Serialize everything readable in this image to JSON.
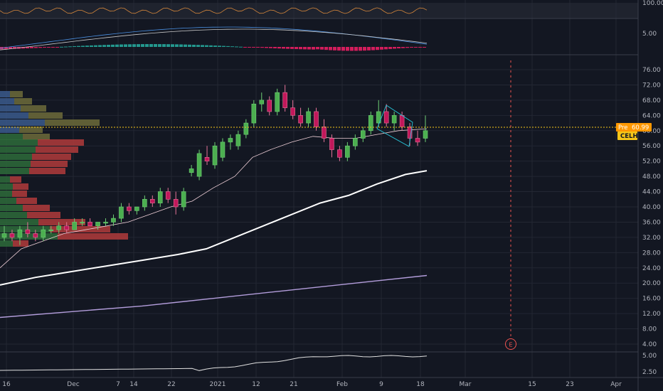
{
  "symbol": "CELH",
  "pre_label": "Pre",
  "price_label": "60.99",
  "earnings_marker": "E",
  "colors": {
    "background": "#131722",
    "grid": "#2a2e39",
    "up": "#26a69a",
    "down": "#ef5350",
    "candle_up": "#4caf50",
    "candle_down": "#c2185b",
    "price_line": "#f5c518",
    "ma_fast": "#f0d0d8",
    "ma_mid": "#ffffff",
    "ma_slow": "#b39ddb",
    "tag": "#ff9800"
  },
  "x_ticks": [
    "16",
    "Dec",
    "7",
    "14",
    "22",
    "2021",
    "12",
    "21",
    "Feb",
    "9",
    "18",
    "Mar",
    "15",
    "23",
    "Apr"
  ],
  "price_ticks": [
    "76.00",
    "72.00",
    "68.00",
    "64.00",
    "60.00",
    "56.00",
    "52.00",
    "48.00",
    "44.00",
    "40.00",
    "36.00",
    "32.00",
    "28.00",
    "24.00",
    "20.00",
    "16.00",
    "12.00",
    "8.00",
    "4.00"
  ],
  "osc_ticks": [
    "100.00"
  ],
  "macd_ticks": [
    "5.00"
  ],
  "vol_ticks": [
    "5.00",
    "2.50"
  ],
  "chart_data": {
    "type": "candlestick",
    "ylim": [
      0,
      80
    ],
    "current_price": 60.99,
    "candles": [
      {
        "o": 32,
        "h": 35,
        "l": 31,
        "c": 33
      },
      {
        "o": 33,
        "h": 34,
        "l": 31,
        "c": 32
      },
      {
        "o": 32,
        "h": 35,
        "l": 30,
        "c": 34
      },
      {
        "o": 34,
        "h": 36,
        "l": 32,
        "c": 33
      },
      {
        "o": 33,
        "h": 34,
        "l": 31,
        "c": 32
      },
      {
        "o": 32,
        "h": 35,
        "l": 31,
        "c": 34
      },
      {
        "o": 34,
        "h": 35,
        "l": 33,
        "c": 34
      },
      {
        "o": 34,
        "h": 36,
        "l": 33,
        "c": 35
      },
      {
        "o": 35,
        "h": 36,
        "l": 33,
        "c": 34
      },
      {
        "o": 34,
        "h": 37,
        "l": 34,
        "c": 36
      },
      {
        "o": 36,
        "h": 37,
        "l": 35,
        "c": 36
      },
      {
        "o": 36,
        "h": 37,
        "l": 35,
        "c": 35
      },
      {
        "o": 35,
        "h": 36,
        "l": 34,
        "c": 36
      },
      {
        "o": 36,
        "h": 37,
        "l": 35,
        "c": 36
      },
      {
        "o": 36,
        "h": 38,
        "l": 35,
        "c": 37
      },
      {
        "o": 37,
        "h": 41,
        "l": 36,
        "c": 40
      },
      {
        "o": 40,
        "h": 41,
        "l": 38,
        "c": 39
      },
      {
        "o": 39,
        "h": 40,
        "l": 38,
        "c": 40
      },
      {
        "o": 40,
        "h": 43,
        "l": 39,
        "c": 42
      },
      {
        "o": 42,
        "h": 43,
        "l": 40,
        "c": 41
      },
      {
        "o": 41,
        "h": 45,
        "l": 40,
        "c": 44
      },
      {
        "o": 44,
        "h": 45,
        "l": 41,
        "c": 42
      },
      {
        "o": 42,
        "h": 44,
        "l": 38,
        "c": 40
      },
      {
        "o": 40,
        "h": 45,
        "l": 39,
        "c": 44
      },
      {
        "o": 49,
        "h": 51,
        "l": 48,
        "c": 50
      },
      {
        "o": 48,
        "h": 55,
        "l": 47,
        "c": 54
      },
      {
        "o": 53,
        "h": 56,
        "l": 51,
        "c": 52
      },
      {
        "o": 51,
        "h": 57,
        "l": 50,
        "c": 56
      },
      {
        "o": 53,
        "h": 58,
        "l": 52,
        "c": 57
      },
      {
        "o": 57,
        "h": 59,
        "l": 55,
        "c": 58
      },
      {
        "o": 56,
        "h": 60,
        "l": 55,
        "c": 59
      },
      {
        "o": 59,
        "h": 63,
        "l": 58,
        "c": 62
      },
      {
        "o": 62,
        "h": 68,
        "l": 61,
        "c": 67
      },
      {
        "o": 67,
        "h": 70,
        "l": 65,
        "c": 68
      },
      {
        "o": 68,
        "h": 69,
        "l": 64,
        "c": 65
      },
      {
        "o": 65,
        "h": 71,
        "l": 64,
        "c": 70
      },
      {
        "o": 70,
        "h": 72,
        "l": 65,
        "c": 66
      },
      {
        "o": 66,
        "h": 68,
        "l": 63,
        "c": 64
      },
      {
        "o": 64,
        "h": 66,
        "l": 61,
        "c": 62
      },
      {
        "o": 62,
        "h": 66,
        "l": 61,
        "c": 65
      },
      {
        "o": 65,
        "h": 66,
        "l": 60,
        "c": 61
      },
      {
        "o": 61,
        "h": 63,
        "l": 57,
        "c": 58
      },
      {
        "o": 58,
        "h": 59,
        "l": 53,
        "c": 55
      },
      {
        "o": 55,
        "h": 56,
        "l": 52,
        "c": 53
      },
      {
        "o": 53,
        "h": 57,
        "l": 52,
        "c": 56
      },
      {
        "o": 56,
        "h": 59,
        "l": 55,
        "c": 58
      },
      {
        "o": 58,
        "h": 61,
        "l": 57,
        "c": 60
      },
      {
        "o": 60,
        "h": 65,
        "l": 59,
        "c": 64
      },
      {
        "o": 62,
        "h": 68,
        "l": 61,
        "c": 65
      },
      {
        "o": 65,
        "h": 67,
        "l": 61,
        "c": 62
      },
      {
        "o": 62,
        "h": 65,
        "l": 60,
        "c": 64
      },
      {
        "o": 64,
        "h": 65,
        "l": 60,
        "c": 61
      },
      {
        "o": 61,
        "h": 62,
        "l": 56,
        "c": 58
      },
      {
        "o": 58,
        "h": 60,
        "l": 56,
        "c": 57
      },
      {
        "o": 58,
        "h": 64,
        "l": 57,
        "c": 60
      }
    ],
    "sma_fast": [
      [
        0,
        24
      ],
      [
        30,
        29
      ],
      [
        60,
        31
      ],
      [
        90,
        33
      ],
      [
        120,
        34
      ],
      [
        150,
        35
      ],
      [
        180,
        36
      ],
      [
        210,
        38
      ],
      [
        240,
        40
      ],
      [
        270,
        41.5
      ],
      [
        300,
        45
      ],
      [
        330,
        48
      ],
      [
        355,
        53
      ],
      [
        380,
        55
      ],
      [
        410,
        57
      ],
      [
        440,
        58.5
      ],
      [
        470,
        58
      ],
      [
        500,
        58
      ],
      [
        530,
        59
      ],
      [
        560,
        60
      ],
      [
        600,
        60.5
      ]
    ],
    "sma_mid": [
      [
        0,
        19.5
      ],
      [
        50,
        21.5
      ],
      [
        100,
        23
      ],
      [
        150,
        24.5
      ],
      [
        200,
        26
      ],
      [
        250,
        27.5
      ],
      [
        290,
        29
      ],
      [
        330,
        32
      ],
      [
        370,
        35
      ],
      [
        410,
        38
      ],
      [
        450,
        41
      ],
      [
        490,
        43
      ],
      [
        530,
        46
      ],
      [
        570,
        48.5
      ],
      [
        600,
        49.5
      ]
    ],
    "sma_slow": [
      [
        0,
        11
      ],
      [
        100,
        12.5
      ],
      [
        200,
        14
      ],
      [
        300,
        16
      ],
      [
        400,
        18
      ],
      [
        500,
        20
      ],
      [
        600,
        22
      ]
    ]
  }
}
